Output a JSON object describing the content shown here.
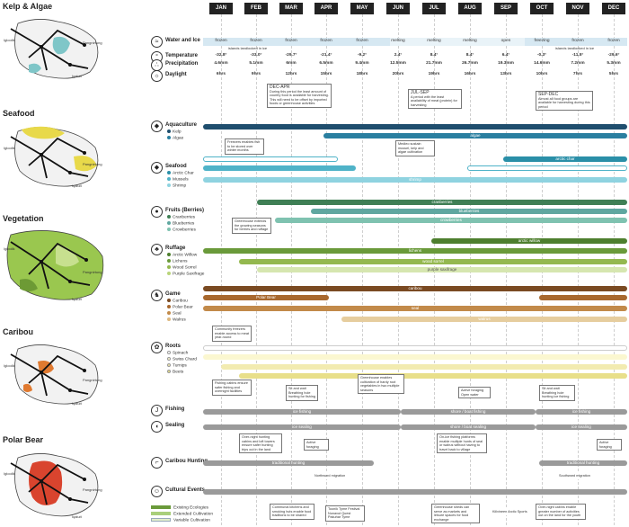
{
  "maps": [
    {
      "title": "Kelp & Algae",
      "tint": "#7fc6c8",
      "labels": [
        "Igloolik",
        "Pangnirtung",
        "Iqaluit"
      ]
    },
    {
      "title": "Seafood",
      "tint": "#e8d94a",
      "labels": [
        "Igloolik",
        "Pangnirtung",
        "Iqaluit"
      ]
    },
    {
      "title": "Vegetation",
      "tint": "#9ac74f",
      "labels": [
        "Igloolik",
        "Pangnirtung",
        "Iqaluit"
      ]
    },
    {
      "title": "Caribou",
      "tint": "#e07a30",
      "labels": [
        "Igloolik",
        "Pangnirtung",
        "Iqaluit"
      ]
    },
    {
      "title": "Polar Bear",
      "tint": "#d9442e",
      "labels": [
        "Igloolik",
        "Pangnirtung",
        "Iqaluit"
      ]
    }
  ],
  "months": [
    "JAN",
    "FEB",
    "MAR",
    "APR",
    "MAY",
    "JUN",
    "JUL",
    "AUG",
    "SEP",
    "OCT",
    "NOV",
    "DEC"
  ],
  "climate": {
    "rows": [
      "Water and Ice",
      "Temperature",
      "Precipitation",
      "Daylight"
    ],
    "water_ice": [
      "frozen",
      "frozen",
      "frozen",
      "frozen",
      "frozen",
      "melting",
      "melting",
      "melting",
      "open",
      "freezing",
      "frozen",
      "frozen"
    ],
    "water_ice_note": "islands landlocked in ice",
    "temperature": [
      "-32.8°",
      "-33.0°",
      "-29.7°",
      "-21.4°",
      "-9.2°",
      "2.4°",
      "8.4°",
      "8.4°",
      "6.4°",
      "-0.3°",
      "-11.5°",
      "-29.6°"
    ],
    "precipitation": [
      "4.6mm",
      "5.1mm",
      "6mm",
      "6.5mm",
      "9.4mm",
      "12.5mm",
      "21.7mm",
      "26.7mm",
      "19.3mm",
      "14.6mm",
      "7.2mm",
      "5.3mm"
    ],
    "daylight": [
      "6hrs",
      "9hrs",
      "12hrs",
      "15hrs",
      "18hrs",
      "20hrs",
      "19hrs",
      "16hrs",
      "13hrs",
      "10hrs",
      "7hrs",
      "5hrs"
    ]
  },
  "periods": [
    {
      "title": "DEC-APR",
      "text": "During this period the least amount of country food is available for harvesting. This will need to be offset by imported foods or greenhouse activities"
    },
    {
      "title": "JUL-SEP",
      "text": "A period with the least availability of meat (protein) for harvesting"
    },
    {
      "title": "SEP-DEC",
      "text": "Almost all food groups are available for harvesting during this period"
    }
  ],
  "categories": [
    {
      "title": "Aquaculture",
      "icon": "fish-icon",
      "items": [
        {
          "name": "Kelp",
          "color": "#1f4e6e"
        },
        {
          "name": "Algae",
          "color": "#2a7fa0"
        }
      ]
    },
    {
      "title": "Seafood",
      "icon": "fish-icon",
      "items": [
        {
          "name": "Arctic Char",
          "color": "#2a8fa8"
        },
        {
          "name": "Mussels",
          "color": "#4fb3c8"
        },
        {
          "name": "Shrimp",
          "color": "#8fd3e0"
        }
      ]
    },
    {
      "title": "Fruits (Berries)",
      "icon": "berry-icon",
      "items": [
        {
          "name": "Cranberries",
          "color": "#3f7f55"
        },
        {
          "name": "Blueberries",
          "color": "#5fa7a0"
        },
        {
          "name": "Crowberries",
          "color": "#7fc2b0"
        }
      ]
    },
    {
      "title": "Ruffage",
      "icon": "leaf-icon",
      "items": [
        {
          "name": "Arctic Willow",
          "color": "#4e7f2e"
        },
        {
          "name": "Lichens",
          "color": "#6a9a3a"
        },
        {
          "name": "Wood Sorrel",
          "color": "#94b84f"
        },
        {
          "name": "Purple Saxifrage",
          "color": "#b9d47a"
        }
      ]
    },
    {
      "title": "Game",
      "icon": "caribou-icon",
      "items": [
        {
          "name": "Caribou",
          "color": "#7a4a22"
        },
        {
          "name": "Polar Bear",
          "color": "#a8682e"
        },
        {
          "name": "Seal",
          "color": "#c28a4a"
        },
        {
          "name": "Walrus",
          "color": "#ddb880"
        }
      ]
    },
    {
      "title": "Roots",
      "icon": "root-icon",
      "items": [
        {
          "name": "Spinach",
          "color": "#ffffff"
        },
        {
          "name": "Swiss Chard",
          "color": "#fbf7d0"
        },
        {
          "name": "Turnips",
          "color": "#f2ebb0"
        },
        {
          "name": "Beets",
          "color": "#e8df8a"
        }
      ]
    },
    {
      "title": "Fishing",
      "icon": "hook-icon",
      "items": []
    },
    {
      "title": "Sealing",
      "icon": "seal-icon",
      "items": []
    },
    {
      "title": "Caribou Hunting",
      "icon": "rifle-icon",
      "items": []
    },
    {
      "title": "Cultural Events",
      "icon": "people-icon",
      "items": []
    }
  ],
  "bars": {
    "kelp": "",
    "algae": "algae",
    "arctic_char": "arctic char",
    "shrimp": "shrimp",
    "cranberries": "cranberries",
    "blueberries": "blueberries",
    "crowberries": "crowberries",
    "arctic_willow": "arctic willow",
    "lichens": "lichens",
    "wood_sorrel": "wood sorrel",
    "purple_saxifrage": "purple saxifrage",
    "caribou": "caribou",
    "polar_bear": "Polar Bear",
    "seal": "seal",
    "walrus": "walrus",
    "ice_fishing": "ice fishing",
    "shore_boat_fishing": "shore / boat fishing",
    "ice_sealing": "ice sealing",
    "shore_boat_sealing": "shore / boat sealing",
    "traditional_hunting": "traditional hunting"
  },
  "notes": {
    "freezer": "Freezers enables fish to be stored over winter months",
    "medieo": "Medieo sustain mussel, kelp and algae cultivation",
    "greenhouse_berries": "Greenhouse extends the growing seasons for berries and ruffage",
    "community_freezer": "Community freezers enable access to meat year-round",
    "fishing_cabins": "Fishing cabins ensure safer fishing and overnight facilities",
    "sit_wait_1": "Sit and wait Breathing hole hunting for fishing",
    "greenhouse_roots": "Greenhouse enables cultivation of hardy root vegetables in two multiple seasons",
    "active_foraging_open": "Active foraging Open water",
    "sit_wait_2": "Sit and wait Breathing hole hunting ice fishing",
    "overnight_cabins": "Over-night hunting cabins and loft towers ensure safer hunting trips out in the land",
    "active_foraging": "Active foraging",
    "on_ice_platforms": "On-ice fishing platforms enable multiple hunts of seal or walrus without having to travel back to village",
    "active_foraging_2": "Active foraging",
    "northward": "Northward migration",
    "southward": "Southward migration",
    "kitchens": "Communal kitchens and smoking huts enable food traditions to be shared",
    "toonik": "Toonik Tyme Festival Nunavut Quest Pakuhar Tyme",
    "greenhouse_sheds": "Greenhouse sheds can serve as markets and leisure spaces for food exchange",
    "kiilvineen": "Kiilvineen Arctic Sports",
    "overnight_cabins_2": "Over-night cabins enable greater number of activities out on the land for the youth"
  },
  "legend": [
    {
      "label": "Existing Ecologies",
      "color": "#6a9a3a"
    },
    {
      "label": "Extended Cultivation",
      "color": "#a9cf7a"
    },
    {
      "label": "Variable Cultivation",
      "color": "#e3efc9"
    }
  ]
}
